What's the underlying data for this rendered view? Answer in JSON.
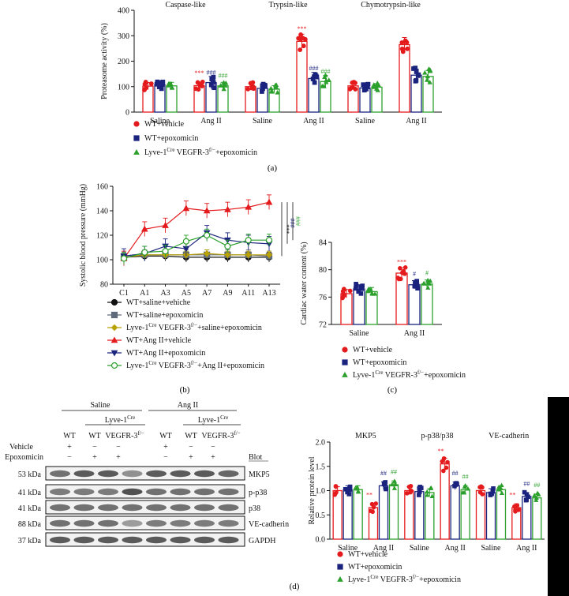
{
  "colors": {
    "red": "#e41a1c",
    "navy": "#1a237e",
    "navy_light": "#2a3590",
    "green": "#2ca02c",
    "olive": "#b8a100",
    "grey": "#5f6b7a",
    "black": "#111111"
  },
  "panel_labels": {
    "a": "(a)",
    "b": "(b)",
    "c": "(c)",
    "d": "(d)"
  },
  "chart_data": [
    {
      "type": "bar",
      "id": "a",
      "ylabel": "Proteasome activity (%)",
      "ylim": [
        0,
        400
      ],
      "yticks": [
        0,
        100,
        200,
        300,
        400
      ],
      "groups": [
        "Caspase-like",
        "Trypsin-like",
        "Chymotrypsin-like"
      ],
      "categories": [
        "Saline",
        "Ang II",
        "Saline",
        "Ang II",
        "Saline",
        "Ang II"
      ],
      "series": [
        {
          "name": "WT+vehicle",
          "values": [
            102,
            104,
            100,
            278,
            103,
            265
          ]
        },
        {
          "name": "WT+epoxomicin",
          "values": [
            108,
            116,
            93,
            132,
            95,
            145
          ]
        },
        {
          "name": "Lyve-1Cre VEGFR-3f/−+epoxomicin",
          "values": [
            103,
            103,
            90,
            120,
            98,
            140
          ]
        }
      ],
      "annotations": [
        "***",
        "###",
        "###",
        "***",
        "###",
        "###"
      ],
      "legend": [
        {
          "label": "WT+vehicle",
          "sup": ""
        },
        {
          "label": "WT+epoxomicin",
          "sup": ""
        },
        {
          "label_pre": "Lyve-1",
          "sup1": "Cre",
          "label_mid": " VEGFR-3",
          "sup2": "f/−",
          "label_post": "+epoxomicin"
        }
      ]
    },
    {
      "type": "line",
      "id": "b",
      "ylabel": "Systolic blood pressure (mmHg)",
      "ylim": [
        80,
        160
      ],
      "yticks": [
        80,
        100,
        120,
        140,
        160
      ],
      "x": [
        "C1",
        "A1",
        "A3",
        "A5",
        "A7",
        "A9",
        "A11",
        "A13"
      ],
      "series": [
        {
          "name": "WT+saline+vehiche",
          "values": [
            102,
            103,
            103,
            102,
            102,
            102,
            102,
            102
          ]
        },
        {
          "name": "WT+saline+epoxomicin",
          "values": [
            102,
            104,
            104,
            104,
            104,
            104,
            104,
            103
          ]
        },
        {
          "name": "Lyve-1Cre VEGFR-3f/−+saline+epoxomicin",
          "values": [
            102,
            104,
            104,
            104,
            105,
            104,
            104,
            104
          ]
        },
        {
          "name": "WT+Ang II+vehicle",
          "values": [
            101,
            125,
            128,
            142,
            140,
            141,
            143,
            147
          ]
        },
        {
          "name": "WT+Ang II+epoxomicin",
          "values": [
            103,
            105,
            111,
            109,
            122,
            116,
            114,
            113
          ]
        },
        {
          "name": "Lyve-1Cre VEGFR-3f/−+Ang II+epoxomicin",
          "values": [
            101,
            106,
            107,
            115,
            120,
            111,
            116,
            116
          ]
        }
      ],
      "annotations": [
        "***",
        "###",
        "###"
      ],
      "legend": [
        {
          "label": "WT+saline+vehiche"
        },
        {
          "label": "WT+saline+epoxomicin"
        },
        {
          "label_pre": "Lyve-1",
          "sup1": "Cre",
          "label_mid": " VEGFR-3",
          "sup2": "f/−",
          "label_post": "+saline+epoxomicin"
        },
        {
          "label": "WT+Ang II+vehicle"
        },
        {
          "label": "WT+Ang II+epoxomicin"
        },
        {
          "label_pre": "Lyve-1",
          "sup1": "Cre",
          "label_mid": " VEGFR-3",
          "sup2": "f/−",
          "label_post": "+Ang II+epoxomicin"
        }
      ]
    },
    {
      "type": "bar",
      "id": "c",
      "ylabel": "Cardiac water content (%)",
      "ylim": [
        72,
        84
      ],
      "yticks": [
        72,
        76,
        80,
        84
      ],
      "categories": [
        "Saline",
        "Ang II"
      ],
      "series": [
        {
          "name": "WT+vehicle",
          "values": [
            76.5,
            79.5
          ]
        },
        {
          "name": "WT+epoxomicin",
          "values": [
            77.2,
            77.8
          ]
        },
        {
          "name": "Lyve-1Cre VEGFR-3f/−+epoxomicin",
          "values": [
            76.8,
            77.9
          ]
        }
      ],
      "annotations": [
        "***",
        "#",
        "#"
      ],
      "legend": [
        {
          "label": "WT+vehicle"
        },
        {
          "label": "WT+epoxomicin"
        },
        {
          "label_pre": "Lyve-1",
          "sup1": "Cre",
          "label_mid": " VEGFR-3",
          "sup2": "f/−",
          "label_post": "+epoxomicin"
        }
      ]
    },
    {
      "type": "bar",
      "id": "d",
      "ylabel": "Relative protein level",
      "ylim": [
        0,
        2.0
      ],
      "yticks": [
        0.0,
        0.5,
        1.0,
        1.5,
        2.0
      ],
      "groups": [
        "MKP5",
        "p-p38/p38",
        "VE-cadherin"
      ],
      "categories": [
        "Saline",
        "Ang II",
        "Saline",
        "Ang II",
        "Saline",
        "Ang II"
      ],
      "series": [
        {
          "name": "WT+vehicle",
          "values": [
            1.0,
            0.65,
            1.0,
            1.55,
            1.0,
            0.65
          ]
        },
        {
          "name": "WT+epoxomicin",
          "values": [
            1.02,
            1.1,
            0.98,
            1.1,
            0.96,
            0.88
          ]
        },
        {
          "name": "Lyve-1Cre VEGFR-3f/−+epoxomicin",
          "values": [
            1.02,
            1.12,
            0.96,
            1.02,
            1.02,
            0.85
          ]
        }
      ],
      "annotations": [
        "**",
        "##",
        "##",
        "**",
        "##",
        "##",
        "**",
        "##",
        "##"
      ],
      "legend": [
        {
          "label": "WT+vehicle"
        },
        {
          "label": "WT+epoxomicin"
        },
        {
          "label_pre": "Lyve-1",
          "sup1": "Cre",
          "label_mid": " VEGFR-3",
          "sup2": "f/−",
          "label_post": "+epoxomicin"
        }
      ]
    }
  ],
  "blot": {
    "top_groups": [
      "Saline",
      "Ang II"
    ],
    "sub_groups": [
      "Lyve-1",
      "Lyve-1"
    ],
    "sub_sup": "Cre",
    "genotypes": [
      "WT",
      "WT",
      "VEGFR-3",
      "WT",
      "WT",
      "VEGFR-3"
    ],
    "genotype_sup": "f/−",
    "row_labels": [
      "Vehicle",
      "Epoxomicin"
    ],
    "vehicle_marks": [
      "+",
      "−",
      "−",
      "+",
      "−",
      "−"
    ],
    "epox_marks": [
      "−",
      "+",
      "+",
      "−",
      "+",
      "+"
    ],
    "blot_header": "Blot",
    "kda": [
      "53 kDa",
      "41 kDa",
      "41 kDa",
      "88 kDa",
      "37 kDa"
    ],
    "proteins": [
      "MKP5",
      "p-p38",
      "p38",
      "VE-cadherin",
      "GAPDH"
    ]
  }
}
